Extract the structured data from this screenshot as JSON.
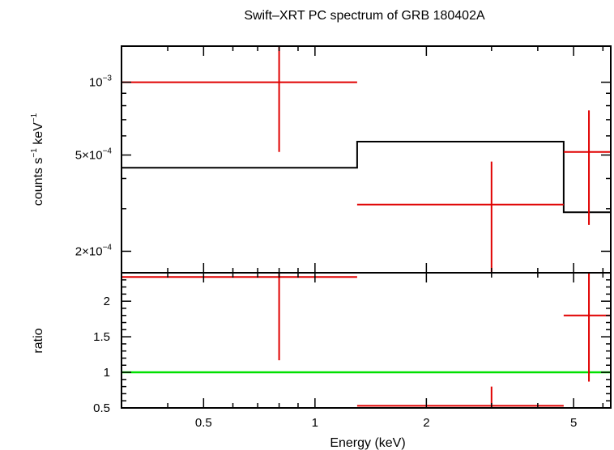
{
  "chart_data": {
    "type": "scatter",
    "title": "Swift–XRT PC spectrum of GRB 180402A",
    "xlabel": "Energy (keV)",
    "x_scale": "log",
    "xlim": [
      0.3,
      6.3
    ],
    "x_ticks": [
      {
        "v": 0.5,
        "label": "0.5"
      },
      {
        "v": 1,
        "label": "1"
      },
      {
        "v": 2,
        "label": "2"
      },
      {
        "v": 5,
        "label": "5"
      }
    ],
    "top_panel": {
      "ylabel_main": "counts s",
      "ylabel_sup1": "−1",
      "ylabel_mid": " keV",
      "ylabel_sup2": "−1",
      "y_scale": "log",
      "ylim": [
        0.000163,
        0.00141
      ],
      "y_ticks": [
        {
          "v": 0.001,
          "label_base": "10",
          "label_sup": "−3"
        },
        {
          "v": 0.0005,
          "label_base": "5×10",
          "label_sup": "−4"
        },
        {
          "v": 0.0002,
          "label_base": "2×10",
          "label_sup": "−4"
        }
      ],
      "data": [
        {
          "x_lo": 0.3,
          "x_hi": 1.3,
          "x": 0.8,
          "y": 0.001,
          "y_lo": 0.000515,
          "y_hi": 0.00141
        },
        {
          "x_lo": 1.3,
          "x_hi": 4.7,
          "x": 3.0,
          "y": 0.000312,
          "y_lo": 0.000163,
          "y_hi": 0.00047
        },
        {
          "x_lo": 4.7,
          "x_hi": 6.3,
          "x": 5.5,
          "y": 0.000515,
          "y_lo": 0.000257,
          "y_hi": 0.000765
        }
      ],
      "model": [
        {
          "x_lo": 0.3,
          "x_hi": 1.3,
          "y": 0.000443
        },
        {
          "x_lo": 1.3,
          "x_hi": 4.7,
          "y": 0.000568
        },
        {
          "x_lo": 4.7,
          "x_hi": 6.3,
          "y": 0.00029
        }
      ]
    },
    "bottom_panel": {
      "ylabel": "ratio",
      "y_scale": "linear",
      "ylim": [
        0.5,
        2.4
      ],
      "y_ticks": [
        {
          "v": 0.5,
          "label": "0.5"
        },
        {
          "v": 1,
          "label": "1"
        },
        {
          "v": 1.5,
          "label": "1.5"
        },
        {
          "v": 2,
          "label": "2"
        }
      ],
      "data": [
        {
          "x_lo": 0.3,
          "x_hi": 1.3,
          "x": 0.8,
          "y": 2.34,
          "y_lo": 1.17,
          "y_hi": 2.4
        },
        {
          "x_lo": 1.3,
          "x_hi": 4.7,
          "x": 3.0,
          "y": 0.53,
          "y_lo": 0.5,
          "y_hi": 0.8
        },
        {
          "x_lo": 4.7,
          "x_hi": 6.3,
          "x": 5.5,
          "y": 1.8,
          "y_lo": 0.87,
          "y_hi": 2.4
        }
      ],
      "reference_line": 1
    },
    "colors": {
      "data": "#e00000",
      "model": "#000000",
      "reference": "#00e000"
    }
  }
}
